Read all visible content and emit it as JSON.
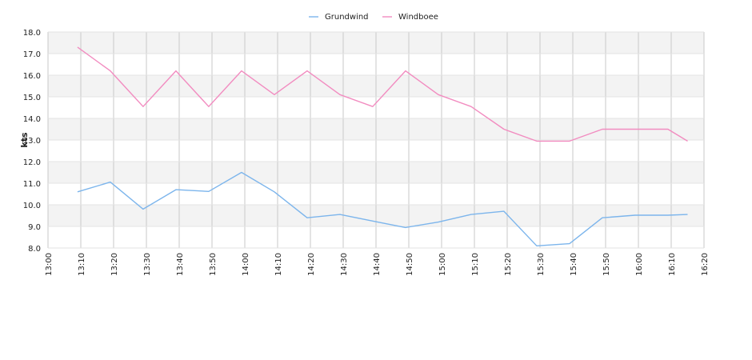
{
  "chart_data": {
    "type": "line",
    "title": "",
    "xlabel": "",
    "ylabel": "kts",
    "ylim": [
      8.0,
      18.0
    ],
    "xlim": [
      "13:00",
      "16:20"
    ],
    "grid": true,
    "legend_position": "top-center",
    "x_ticks": [
      "13:00",
      "13:10",
      "13:20",
      "13:30",
      "13:40",
      "13:50",
      "14:00",
      "14:10",
      "14:20",
      "14:30",
      "14:40",
      "14:50",
      "15:00",
      "15:10",
      "15:20",
      "15:30",
      "15:40",
      "15:50",
      "16:00",
      "16:10",
      "16:20"
    ],
    "y_ticks": [
      "8.0",
      "9.0",
      "10.0",
      "11.0",
      "12.0",
      "13.0",
      "14.0",
      "15.0",
      "16.0",
      "17.0",
      "18.0"
    ],
    "x": [
      "13:09",
      "13:19",
      "13:29",
      "13:39",
      "13:49",
      "13:59",
      "14:09",
      "14:19",
      "14:29",
      "14:39",
      "14:49",
      "14:59",
      "15:09",
      "15:19",
      "15:29",
      "15:39",
      "15:49",
      "15:59",
      "16:09",
      "16:15"
    ],
    "series": [
      {
        "name": "Grundwind",
        "color": "#7cb5ec",
        "values": [
          10.6,
          11.05,
          9.8,
          10.7,
          10.62,
          11.5,
          10.6,
          9.4,
          9.55,
          9.25,
          8.95,
          9.2,
          9.55,
          9.7,
          8.1,
          8.2,
          9.4,
          9.52,
          9.52,
          9.55
        ]
      },
      {
        "name": "Windboee",
        "color": "#f28cc0",
        "values": [
          17.3,
          16.2,
          14.55,
          16.2,
          14.55,
          16.2,
          15.1,
          16.2,
          15.1,
          14.55,
          16.2,
          15.1,
          14.55,
          13.5,
          12.95,
          12.95,
          13.5,
          13.5,
          13.5,
          12.95
        ]
      }
    ]
  }
}
